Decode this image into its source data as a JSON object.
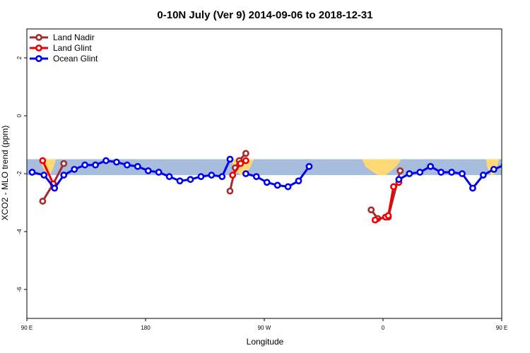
{
  "chart_data": {
    "type": "line",
    "title": "0-10N July (Ver 9)   2014-09-06 to 2018-12-31",
    "xlabel": "Longitude",
    "ylabel": "XCO2 - MLO trend (ppm)",
    "xlim": [
      0,
      360
    ],
    "ylim": [
      -7,
      3
    ],
    "x_ticks": [
      {
        "value": 0,
        "label": "90 E"
      },
      {
        "value": 90,
        "label": "180"
      },
      {
        "value": 180,
        "label": "90 W"
      },
      {
        "value": 270,
        "label": "0"
      },
      {
        "value": 360,
        "label": "90 E"
      },
      {
        "value": 450,
        "label": "180"
      }
    ],
    "y_ticks": [
      {
        "value": 2,
        "label": "2"
      },
      {
        "value": 0,
        "label": "0"
      },
      {
        "value": -2,
        "label": "-2"
      },
      {
        "value": -4,
        "label": "-4"
      },
      {
        "value": -6,
        "label": "-6"
      }
    ],
    "band": {
      "ymin": -2.05,
      "ymax": -1.5,
      "color": "#a6bddb"
    },
    "land_color": "#fed976",
    "land_regions": [
      {
        "xs": [
          11,
          22
        ],
        "top": -1.5,
        "bottom": -2.05
      },
      {
        "xs": [
          155,
          172
        ],
        "top": -1.5,
        "bottom": -2.05
      },
      {
        "xs": [
          254,
          284
        ],
        "top": -1.5,
        "bottom": -2.05
      },
      {
        "xs": [
          348,
          358
        ],
        "top": -1.5,
        "bottom": -2.05
      }
    ],
    "legend_position": "top-left",
    "series": [
      {
        "name": "Land Nadir",
        "color": "#a52a2a",
        "segments": [
          [
            [
              12,
              -2.95
            ],
            [
              20,
              -2.35
            ],
            [
              28,
              -1.65
            ]
          ],
          [
            [
              154,
              -2.6
            ],
            [
              158,
              -1.8
            ],
            [
              161,
              -1.55
            ],
            [
              166,
              -1.3
            ]
          ],
          [
            [
              261,
              -3.25
            ],
            [
              266,
              -3.55
            ],
            [
              274,
              -3.5
            ],
            [
              283,
              -1.9
            ]
          ],
          [
            [
              372,
              -2.95
            ],
            [
              381,
              -2.35
            ],
            [
              388,
              -1.65
            ]
          ]
        ]
      },
      {
        "name": "Land Glint",
        "color": "#ee0000",
        "segments": [
          [
            [
              12,
              -1.55
            ],
            [
              20,
              -2.35
            ]
          ],
          [
            [
              156,
              -2.05
            ],
            [
              162,
              -1.65
            ],
            [
              166,
              -1.55
            ]
          ],
          [
            [
              264,
              -3.6
            ],
            [
              272,
              -3.5
            ],
            [
              274,
              -3.45
            ],
            [
              278,
              -2.45
            ],
            [
              282,
              -2.3
            ]
          ],
          [
            [
              372,
              -1.55
            ],
            [
              380,
              -2.4
            ]
          ]
        ]
      },
      {
        "name": "Ocean Glint",
        "color": "#0000ee",
        "segments": [
          [
            [
              4,
              -1.95
            ],
            [
              13,
              -2.05
            ],
            [
              21,
              -2.5
            ],
            [
              28,
              -2.05
            ],
            [
              36,
              -1.85
            ],
            [
              44,
              -1.7
            ],
            [
              52,
              -1.7
            ],
            [
              60,
              -1.55
            ],
            [
              68,
              -1.6
            ],
            [
              76,
              -1.7
            ],
            [
              84,
              -1.75
            ],
            [
              92,
              -1.9
            ],
            [
              100,
              -1.95
            ],
            [
              108,
              -2.1
            ],
            [
              116,
              -2.25
            ],
            [
              124,
              -2.2
            ],
            [
              132,
              -2.1
            ],
            [
              140,
              -2.05
            ],
            [
              148,
              -2.1
            ],
            [
              154,
              -1.5
            ]
          ],
          [
            [
              166,
              -2.0
            ],
            [
              174,
              -2.1
            ],
            [
              182,
              -2.3
            ],
            [
              190,
              -2.4
            ],
            [
              198,
              -2.45
            ],
            [
              206,
              -2.25
            ],
            [
              214,
              -1.75
            ]
          ],
          [
            [
              282,
              -2.2
            ],
            [
              290,
              -2.0
            ],
            [
              298,
              -1.95
            ],
            [
              306,
              -1.75
            ],
            [
              314,
              -1.95
            ],
            [
              322,
              -1.95
            ],
            [
              330,
              -2.0
            ],
            [
              338,
              -2.5
            ],
            [
              346,
              -2.05
            ],
            [
              354,
              -1.85
            ],
            [
              362,
              -1.7
            ],
            [
              370,
              -1.65
            ],
            [
              378,
              -1.55
            ],
            [
              386,
              -1.6
            ]
          ]
        ]
      }
    ]
  }
}
